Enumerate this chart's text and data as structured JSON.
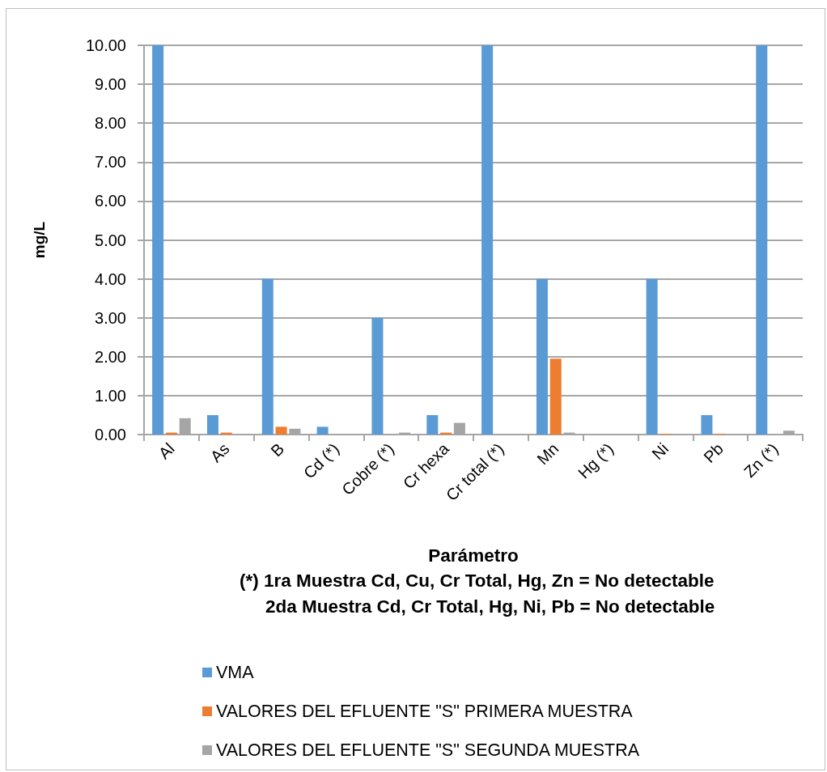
{
  "chart_data": {
    "type": "bar",
    "categories": [
      "Al",
      "As",
      "B",
      "Cd (*)",
      "Cobre (*)",
      "Cr hexa",
      "Cr total (*)",
      "Mn",
      "Hg (*)",
      "Ni",
      "Pb",
      "Zn (*)"
    ],
    "series": [
      {
        "name": "VMA",
        "color": "#5b9bd5",
        "values": [
          10,
          0.5,
          4,
          0.2,
          3,
          0.5,
          10,
          4,
          0,
          4,
          0.5,
          10
        ]
      },
      {
        "name": "VALORES DEL EFLUENTE \"S\" PRIMERA MUESTRA",
        "color": "#ed7d31",
        "values": [
          0.05,
          0.05,
          0.2,
          0,
          0,
          0.05,
          0,
          1.95,
          0,
          0.02,
          0.02,
          0
        ]
      },
      {
        "name": "VALORES DEL EFLUENTE \"S\" SEGUNDA MUESTRA",
        "color": "#a5a5a5",
        "values": [
          0.42,
          0,
          0.15,
          0,
          0.05,
          0.3,
          0,
          0.05,
          0,
          0,
          0,
          0.1
        ]
      }
    ],
    "ylim": [
      0,
      10
    ],
    "yticks": [
      {
        "value": 0,
        "label": "0.00"
      },
      {
        "value": 1,
        "label": "1.00"
      },
      {
        "value": 2,
        "label": "2.00"
      },
      {
        "value": 3,
        "label": "3.00"
      },
      {
        "value": 4,
        "label": "4.00"
      },
      {
        "value": 5,
        "label": "5.00"
      },
      {
        "value": 6,
        "label": "6.00"
      },
      {
        "value": 7,
        "label": "7.00"
      },
      {
        "value": 8,
        "label": "8.00"
      },
      {
        "value": 9,
        "label": "9.00"
      },
      {
        "value": 10,
        "label": "10.00"
      }
    ],
    "ylabel": "mg/L",
    "xlabel": "Parámetro",
    "annotations": [
      "(*) 1ra Muestra Cd, Cu, Cr Total, Hg, Zn = No detectable",
      "2da Muestra Cd, Cr Total, Hg, Ni, Pb = No detectable"
    ],
    "grid": "y",
    "legend": "bottom"
  }
}
